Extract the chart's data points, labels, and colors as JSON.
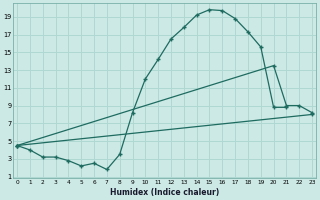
{
  "xlabel": "Humidex (Indice chaleur)",
  "bg_color": "#cce9e5",
  "grid_color": "#b0d8d3",
  "line_color": "#1e6b60",
  "line1_x": [
    0,
    1,
    2,
    3,
    4,
    5,
    6,
    7,
    8,
    9,
    10,
    11,
    12,
    13,
    14,
    15,
    16,
    17,
    18,
    19,
    20,
    21
  ],
  "line1_y": [
    4.5,
    4.0,
    3.2,
    3.2,
    2.8,
    2.2,
    2.5,
    1.8,
    3.5,
    8.2,
    12.0,
    14.2,
    16.5,
    17.8,
    19.2,
    19.8,
    19.7,
    18.8,
    17.3,
    15.6,
    8.8,
    8.8
  ],
  "line2_x": [
    0,
    20,
    21,
    22,
    23
  ],
  "line2_y": [
    4.5,
    13.5,
    9.0,
    9.0,
    8.2
  ],
  "line3_x": [
    0,
    23
  ],
  "line3_y": [
    4.5,
    8.0
  ],
  "xlim": [
    -0.3,
    23.3
  ],
  "ylim": [
    0.8,
    20.5
  ],
  "yticks": [
    1,
    3,
    5,
    7,
    9,
    11,
    13,
    15,
    17,
    19
  ],
  "xticks": [
    0,
    1,
    2,
    3,
    4,
    5,
    6,
    7,
    8,
    9,
    10,
    11,
    12,
    13,
    14,
    15,
    16,
    17,
    18,
    19,
    20,
    21,
    22,
    23
  ]
}
